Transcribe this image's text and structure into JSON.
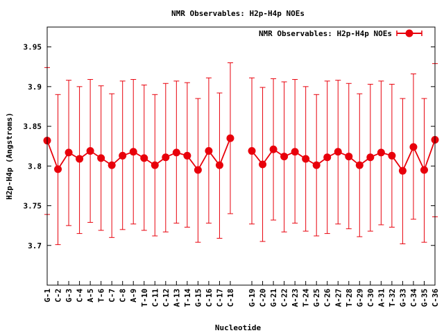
{
  "chart_data": {
    "type": "line",
    "title": "NMR Observables: H2p-H4p NOEs",
    "xlabel": "Nucleotide",
    "ylabel": "H2p-H4p (Angstroms)",
    "ylim": [
      3.65,
      3.975
    ],
    "yticks": [
      3.7,
      3.75,
      3.8,
      3.85,
      3.9,
      3.95
    ],
    "ytick_labels": [
      "3.7",
      "3.75",
      "3.8",
      "3.85",
      "3.9",
      "3.95"
    ],
    "x_slots": 37,
    "legend": {
      "label": "NMR Observables: H2p-H4p NOEs",
      "placement": "top-right"
    },
    "color": "#e8000b",
    "series": [
      {
        "name": "NMR Observables: H2p-H4p NOEs",
        "segments": [
          {
            "points": [
              {
                "slot": 0,
                "label": "G-1",
                "y": 3.832,
                "low": 3.739,
                "high": 3.924
              },
              {
                "slot": 1,
                "label": "C-2",
                "y": 3.796,
                "low": 3.701,
                "high": 3.89
              },
              {
                "slot": 2,
                "label": "G-3",
                "y": 3.817,
                "low": 3.725,
                "high": 3.908
              },
              {
                "slot": 3,
                "label": "C-4",
                "y": 3.809,
                "low": 3.715,
                "high": 3.9
              },
              {
                "slot": 4,
                "label": "A-5",
                "y": 3.819,
                "low": 3.729,
                "high": 3.909
              },
              {
                "slot": 5,
                "label": "T-6",
                "y": 3.81,
                "low": 3.719,
                "high": 3.901
              },
              {
                "slot": 6,
                "label": "C-7",
                "y": 3.801,
                "low": 3.71,
                "high": 3.891
              },
              {
                "slot": 7,
                "label": "C-8",
                "y": 3.813,
                "low": 3.72,
                "high": 3.907
              },
              {
                "slot": 8,
                "label": "A-9",
                "y": 3.818,
                "low": 3.727,
                "high": 3.909
              },
              {
                "slot": 9,
                "label": "T-10",
                "y": 3.81,
                "low": 3.719,
                "high": 3.902
              },
              {
                "slot": 10,
                "label": "C-11",
                "y": 3.801,
                "low": 3.712,
                "high": 3.89
              },
              {
                "slot": 11,
                "label": "C-12",
                "y": 3.811,
                "low": 3.717,
                "high": 3.904
              },
              {
                "slot": 12,
                "label": "A-13",
                "y": 3.817,
                "low": 3.728,
                "high": 3.907
              },
              {
                "slot": 13,
                "label": "T-14",
                "y": 3.813,
                "low": 3.723,
                "high": 3.905
              },
              {
                "slot": 14,
                "label": "G-15",
                "y": 3.795,
                "low": 3.704,
                "high": 3.885
              },
              {
                "slot": 15,
                "label": "C-16",
                "y": 3.819,
                "low": 3.728,
                "high": 3.911
              },
              {
                "slot": 16,
                "label": "C-17",
                "y": 3.801,
                "low": 3.709,
                "high": 3.892
              },
              {
                "slot": 17,
                "label": "C-18",
                "y": 3.835,
                "low": 3.74,
                "high": 3.93
              }
            ]
          },
          {
            "points": [
              {
                "slot": 19,
                "label": "G-19",
                "y": 3.819,
                "low": 3.727,
                "high": 3.911
              },
              {
                "slot": 20,
                "label": "C-20",
                "y": 3.802,
                "low": 3.705,
                "high": 3.899
              },
              {
                "slot": 21,
                "label": "G-21",
                "y": 3.821,
                "low": 3.732,
                "high": 3.91
              },
              {
                "slot": 22,
                "label": "C-22",
                "y": 3.812,
                "low": 3.717,
                "high": 3.906
              },
              {
                "slot": 23,
                "label": "A-23",
                "y": 3.818,
                "low": 3.728,
                "high": 3.909
              },
              {
                "slot": 24,
                "label": "T-24",
                "y": 3.809,
                "low": 3.718,
                "high": 3.9
              },
              {
                "slot": 25,
                "label": "G-25",
                "y": 3.801,
                "low": 3.712,
                "high": 3.89
              },
              {
                "slot": 26,
                "label": "C-26",
                "y": 3.811,
                "low": 3.715,
                "high": 3.907
              },
              {
                "slot": 27,
                "label": "A-27",
                "y": 3.818,
                "low": 3.727,
                "high": 3.908
              },
              {
                "slot": 28,
                "label": "T-28",
                "y": 3.812,
                "low": 3.721,
                "high": 3.904
              },
              {
                "slot": 29,
                "label": "G-29",
                "y": 3.801,
                "low": 3.711,
                "high": 3.891
              },
              {
                "slot": 30,
                "label": "C-30",
                "y": 3.811,
                "low": 3.718,
                "high": 3.903
              },
              {
                "slot": 31,
                "label": "A-31",
                "y": 3.817,
                "low": 3.726,
                "high": 3.907
              },
              {
                "slot": 32,
                "label": "T-32",
                "y": 3.813,
                "low": 3.723,
                "high": 3.903
              },
              {
                "slot": 33,
                "label": "G-33",
                "y": 3.794,
                "low": 3.702,
                "high": 3.885
              },
              {
                "slot": 34,
                "label": "C-34",
                "y": 3.824,
                "low": 3.733,
                "high": 3.916
              },
              {
                "slot": 35,
                "label": "G-35",
                "y": 3.795,
                "low": 3.704,
                "high": 3.885
              },
              {
                "slot": 36,
                "label": "C-36",
                "y": 3.833,
                "low": 3.736,
                "high": 3.929
              }
            ]
          }
        ]
      }
    ]
  }
}
